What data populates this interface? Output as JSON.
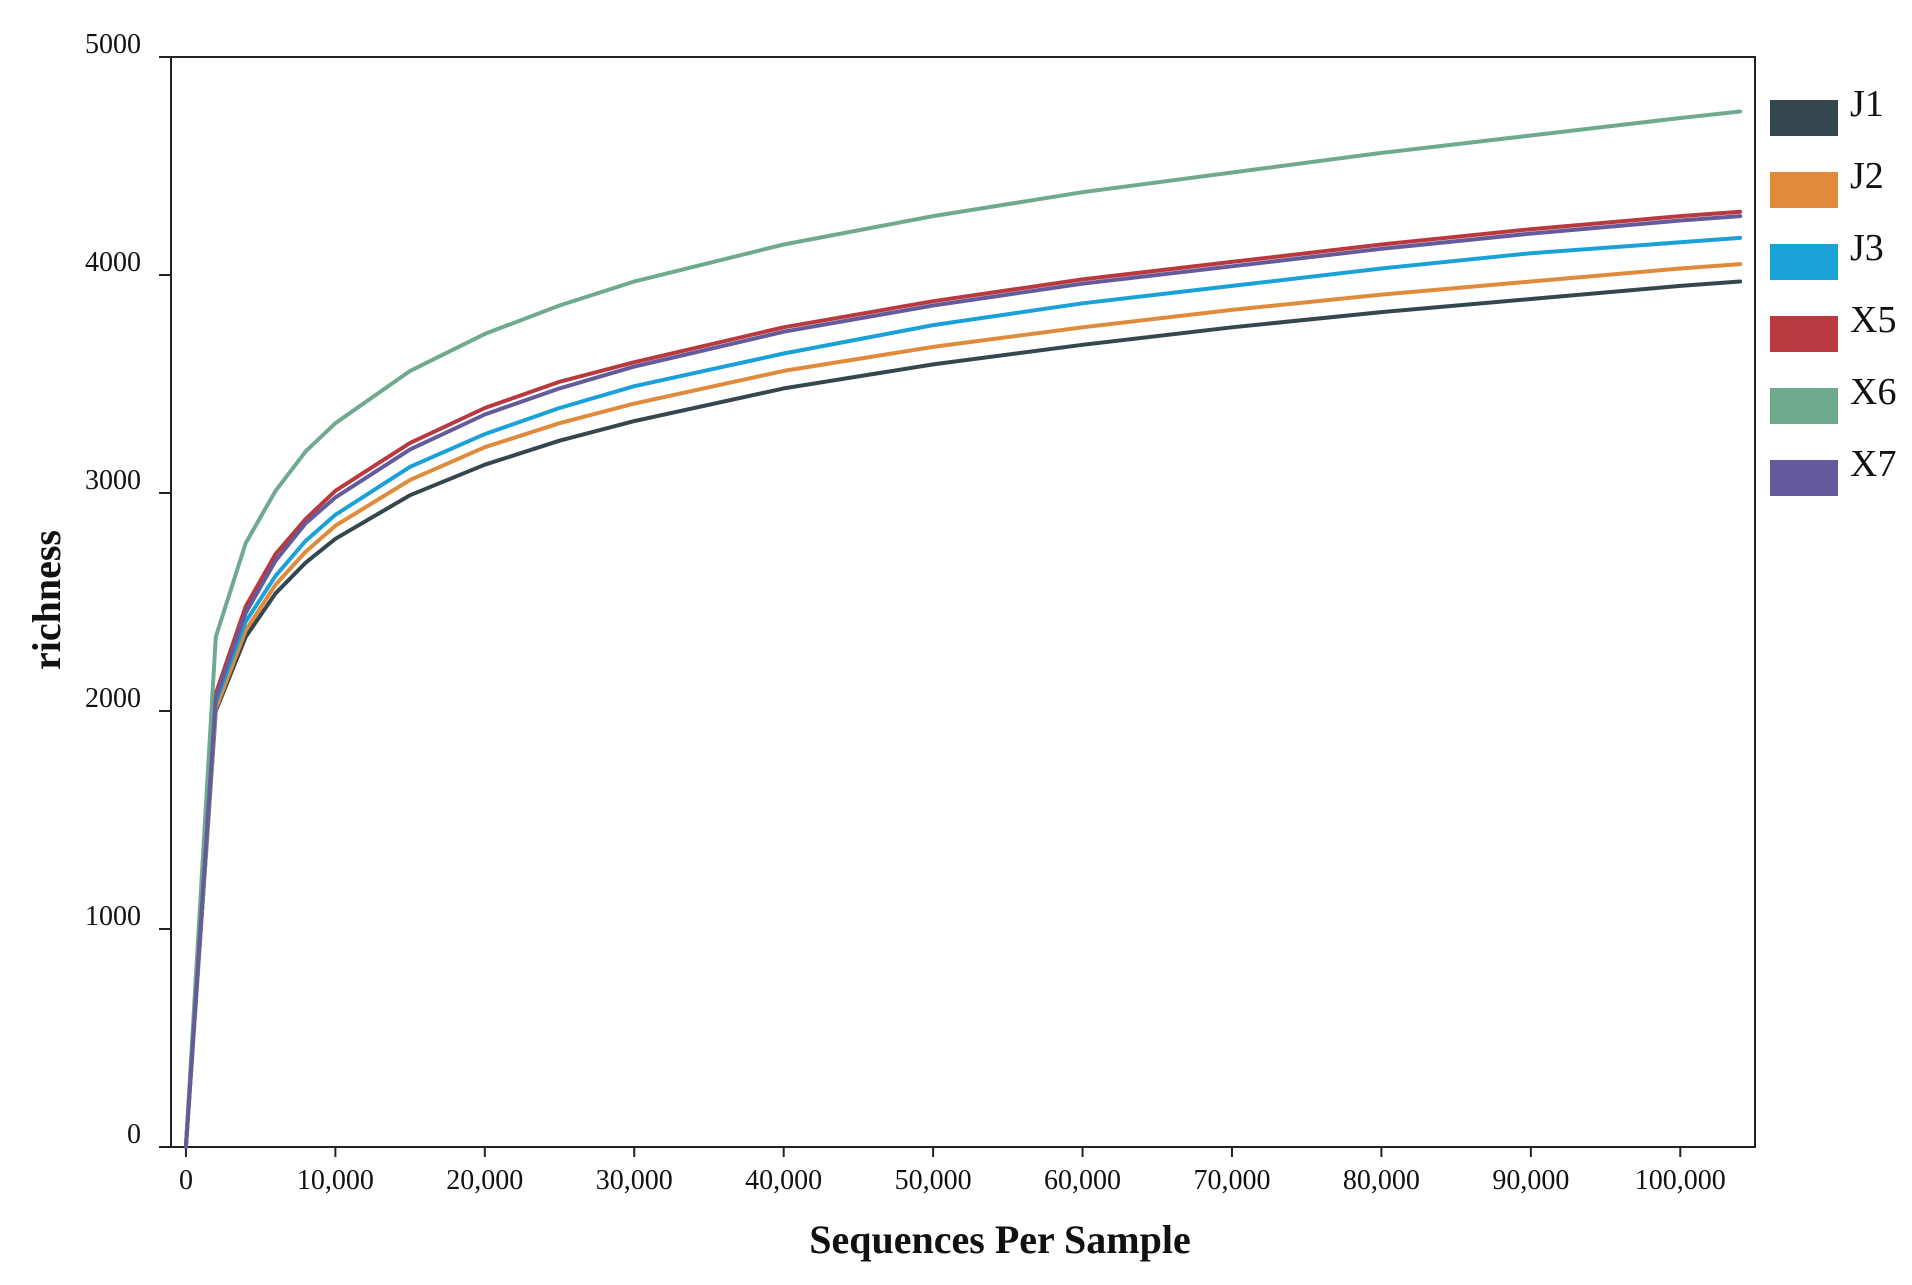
{
  "chart_data": {
    "type": "line",
    "title": "",
    "xlabel": "Sequences Per Sample",
    "ylabel": "richness",
    "xlim": [
      -1000,
      105000
    ],
    "ylim": [
      0,
      5000
    ],
    "x_ticks": [
      0,
      10000,
      20000,
      30000,
      40000,
      50000,
      60000,
      70000,
      80000,
      90000,
      100000
    ],
    "x_tick_labels": [
      "0",
      "10,000",
      "20,000",
      "30,000",
      "40,000",
      "50,000",
      "60,000",
      "70,000",
      "80,000",
      "90,000",
      "100,000"
    ],
    "y_ticks": [
      0,
      1000,
      2000,
      3000,
      4000,
      5000
    ],
    "y_tick_labels": [
      "0",
      "1000",
      "2000",
      "3000",
      "4000",
      "5000"
    ],
    "grid": false,
    "legend_position": "right",
    "x": [
      0,
      2000,
      4000,
      6000,
      8000,
      10000,
      15000,
      20000,
      25000,
      30000,
      40000,
      50000,
      60000,
      70000,
      80000,
      90000,
      100000,
      104000
    ],
    "series": [
      {
        "name": "J1",
        "color": "#34474f",
        "values": [
          0,
          2000,
          2340,
          2540,
          2680,
          2790,
          2990,
          3130,
          3240,
          3330,
          3480,
          3590,
          3680,
          3760,
          3830,
          3890,
          3950,
          3970
        ]
      },
      {
        "name": "J2",
        "color": "#e08a3c",
        "values": [
          0,
          2010,
          2370,
          2580,
          2730,
          2850,
          3060,
          3210,
          3320,
          3410,
          3560,
          3670,
          3760,
          3840,
          3910,
          3970,
          4030,
          4050
        ]
      },
      {
        "name": "J3",
        "color": "#1aa1d8",
        "values": [
          0,
          2040,
          2410,
          2620,
          2780,
          2900,
          3120,
          3270,
          3390,
          3490,
          3640,
          3770,
          3870,
          3950,
          4030,
          4100,
          4150,
          4170
        ]
      },
      {
        "name": "X5",
        "color": "#b8393e",
        "values": [
          0,
          2080,
          2480,
          2720,
          2880,
          3010,
          3230,
          3390,
          3510,
          3600,
          3760,
          3880,
          3980,
          4060,
          4140,
          4210,
          4270,
          4290
        ]
      },
      {
        "name": "X6",
        "color": "#6faa8e",
        "values": [
          0,
          2340,
          2770,
          3010,
          3190,
          3320,
          3560,
          3730,
          3860,
          3970,
          4140,
          4270,
          4380,
          4470,
          4560,
          4640,
          4720,
          4750
        ]
      },
      {
        "name": "X7",
        "color": "#655a9b",
        "values": [
          0,
          2060,
          2450,
          2690,
          2860,
          2980,
          3200,
          3360,
          3480,
          3580,
          3740,
          3860,
          3960,
          4040,
          4120,
          4190,
          4250,
          4270
        ]
      }
    ]
  }
}
